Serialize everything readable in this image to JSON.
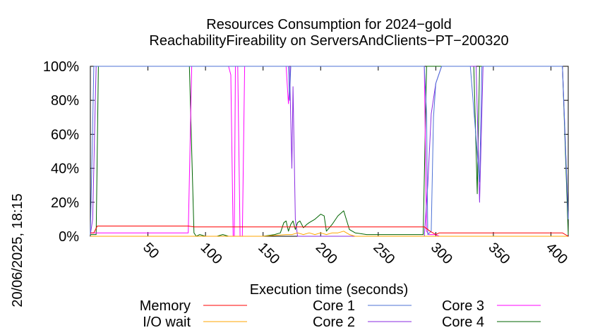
{
  "chart_data": {
    "type": "line",
    "title_line1": "Resources Consumption for 2024−gold",
    "title_line2": "ReachabilityFireability on ServersAndClients−PT−200320",
    "xlabel": "Execution time (seconds)",
    "ylabel": "",
    "side_label": "20/06/2025, 18:15",
    "xlim": [
      0,
      415
    ],
    "ylim": [
      0,
      100
    ],
    "x_ticks": [
      50,
      100,
      150,
      200,
      250,
      300,
      350,
      400
    ],
    "y_ticks": [
      0,
      20,
      40,
      60,
      80,
      100
    ],
    "y_tick_labels": [
      "0%",
      "20%",
      "40%",
      "60%",
      "80%",
      "100%"
    ],
    "grid": false,
    "legend_position": "bottom",
    "series": [
      {
        "name": "Memory",
        "color": "#ff0000",
        "points": [
          [
            0,
            2
          ],
          [
            3,
            2
          ],
          [
            6,
            6
          ],
          [
            85,
            6
          ],
          [
            90,
            5.5
          ],
          [
            170,
            5.5
          ],
          [
            250,
            5.5
          ],
          [
            290,
            5.5
          ],
          [
            295,
            3
          ],
          [
            300,
            1
          ],
          [
            303,
            2
          ],
          [
            380,
            2
          ],
          [
            410,
            2
          ],
          [
            415,
            0
          ]
        ]
      },
      {
        "name": "I/O wait",
        "color": "#ffa500",
        "points": [
          [
            0,
            0
          ],
          [
            85,
            0
          ],
          [
            100,
            0
          ],
          [
            150,
            0
          ],
          [
            170,
            1
          ],
          [
            175,
            1
          ],
          [
            180,
            2
          ],
          [
            185,
            1
          ],
          [
            190,
            2
          ],
          [
            195,
            1
          ],
          [
            200,
            2
          ],
          [
            205,
            1
          ],
          [
            210,
            2
          ],
          [
            215,
            2
          ],
          [
            220,
            3
          ],
          [
            225,
            1
          ],
          [
            230,
            0
          ],
          [
            290,
            0
          ],
          [
            415,
            0
          ]
        ]
      },
      {
        "name": "Core 1",
        "color": "#4d72d6",
        "points": [
          [
            0,
            1
          ],
          [
            2,
            65
          ],
          [
            3,
            100
          ],
          [
            10,
            100
          ],
          [
            50,
            100
          ],
          [
            100,
            100
          ],
          [
            150,
            100
          ],
          [
            170,
            100
          ],
          [
            172,
            100
          ],
          [
            173,
            80
          ],
          [
            174,
            100
          ],
          [
            180,
            100
          ],
          [
            200,
            100
          ],
          [
            290,
            100
          ],
          [
            292,
            72
          ],
          [
            293,
            1
          ],
          [
            296,
            3
          ],
          [
            298,
            70
          ],
          [
            300,
            90
          ],
          [
            305,
            100
          ],
          [
            330,
            100
          ],
          [
            338,
            32
          ],
          [
            340,
            100
          ],
          [
            380,
            100
          ],
          [
            410,
            100
          ],
          [
            415,
            10
          ]
        ]
      },
      {
        "name": "Core 2",
        "color": "#8a2be2",
        "points": [
          [
            0,
            1
          ],
          [
            2,
            10
          ],
          [
            4,
            70
          ],
          [
            5,
            100
          ],
          [
            10,
            100
          ],
          [
            100,
            100
          ],
          [
            150,
            100
          ],
          [
            173,
            100
          ],
          [
            175,
            40
          ],
          [
            176,
            88
          ],
          [
            178,
            10
          ],
          [
            180,
            0
          ],
          [
            182,
            0
          ],
          [
            200,
            0
          ],
          [
            250,
            0
          ],
          [
            285,
            0
          ],
          [
            290,
            0
          ],
          [
            293,
            30
          ],
          [
            296,
            72
          ],
          [
            300,
            90
          ],
          [
            305,
            100
          ],
          [
            335,
            100
          ],
          [
            338,
            20
          ],
          [
            341,
            100
          ],
          [
            380,
            100
          ],
          [
            410,
            100
          ],
          [
            415,
            10
          ]
        ]
      },
      {
        "name": "Core 3",
        "color": "#ff00ff",
        "points": [
          [
            0,
            2
          ],
          [
            10,
            2
          ],
          [
            85,
            2
          ],
          [
            88,
            100
          ],
          [
            100,
            100
          ],
          [
            120,
            100
          ],
          [
            122,
            95
          ],
          [
            124,
            0
          ],
          [
            125,
            0
          ],
          [
            126,
            100
          ],
          [
            128,
            100
          ],
          [
            130,
            0
          ],
          [
            132,
            0
          ],
          [
            134,
            100
          ],
          [
            135,
            100
          ],
          [
            170,
            100
          ],
          [
            172,
            78
          ],
          [
            174,
            100
          ],
          [
            176,
            100
          ],
          [
            178,
            100
          ],
          [
            290,
            100
          ],
          [
            292,
            3
          ],
          [
            294,
            1
          ],
          [
            300,
            1
          ],
          [
            303,
            0
          ],
          [
            415,
            0
          ]
        ]
      },
      {
        "name": "Core 4",
        "color": "#006400",
        "points": [
          [
            0,
            1
          ],
          [
            5,
            1
          ],
          [
            7,
            100
          ],
          [
            80,
            100
          ],
          [
            86,
            100
          ],
          [
            90,
            2
          ],
          [
            92,
            0
          ],
          [
            95,
            1
          ],
          [
            100,
            0
          ],
          [
            110,
            0
          ],
          [
            115,
            1
          ],
          [
            120,
            0
          ],
          [
            150,
            0
          ],
          [
            160,
            1
          ],
          [
            165,
            2
          ],
          [
            168,
            8
          ],
          [
            170,
            9
          ],
          [
            172,
            3
          ],
          [
            174,
            7
          ],
          [
            176,
            9
          ],
          [
            178,
            4
          ],
          [
            180,
            8
          ],
          [
            182,
            9
          ],
          [
            185,
            5
          ],
          [
            188,
            7
          ],
          [
            190,
            8
          ],
          [
            195,
            10
          ],
          [
            200,
            13
          ],
          [
            203,
            12
          ],
          [
            205,
            3
          ],
          [
            210,
            7
          ],
          [
            215,
            12
          ],
          [
            220,
            15
          ],
          [
            225,
            4
          ],
          [
            230,
            2
          ],
          [
            240,
            1
          ],
          [
            280,
            1
          ],
          [
            289,
            1
          ],
          [
            292,
            100
          ],
          [
            333,
            100
          ],
          [
            336,
            25
          ],
          [
            338,
            100
          ],
          [
            380,
            100
          ],
          [
            410,
            100
          ],
          [
            415,
            1
          ]
        ]
      }
    ]
  }
}
